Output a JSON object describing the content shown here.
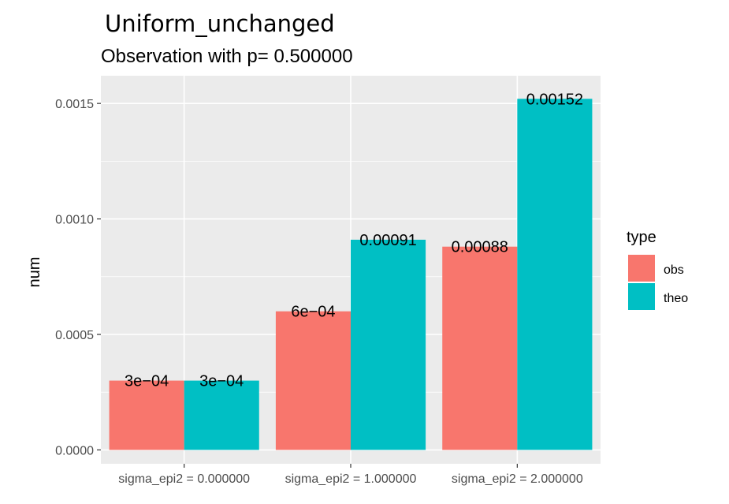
{
  "chart_data": {
    "type": "bar",
    "title": "Uniform_unchanged",
    "subtitle": "Observation with p= 0.500000",
    "xlabel": "",
    "ylabel": "num",
    "categories": [
      "sigma_epi2 = 0.000000",
      "sigma_epi2 = 1.000000",
      "sigma_epi2 = 2.000000"
    ],
    "series": [
      {
        "name": "obs",
        "color": "#F8766D",
        "values": [
          0.0003,
          0.0006,
          0.00088
        ],
        "labels": [
          "3e−04",
          "6e−04",
          "0.00088"
        ]
      },
      {
        "name": "theo",
        "color": "#00BFC4",
        "values": [
          0.0003,
          0.00091,
          0.00152
        ],
        "labels": [
          "3e−04",
          "0.00091",
          "0.00152"
        ]
      }
    ],
    "ylim": [
      -6e-05,
      0.00162
    ],
    "yticks": [
      0,
      0.0005,
      0.001,
      0.0015
    ],
    "ytick_labels": [
      "0.0000",
      "0.0005",
      "0.0010",
      "0.0015"
    ],
    "legend": {
      "title": "type",
      "position": "right"
    },
    "grid": true,
    "panel_color": "#EBEBEB"
  }
}
